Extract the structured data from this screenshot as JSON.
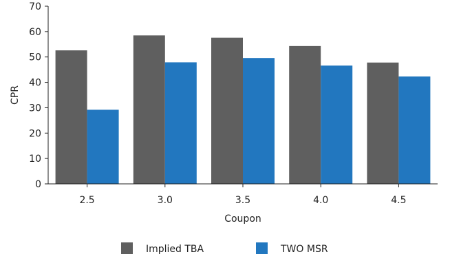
{
  "chart_data": {
    "type": "bar",
    "categories": [
      "2.5",
      "3.0",
      "3.5",
      "4.0",
      "4.5"
    ],
    "series": [
      {
        "name": "Implied TBA",
        "color": "#5f5f5f",
        "values": [
          52.6,
          58.5,
          57.6,
          54.3,
          47.8
        ]
      },
      {
        "name": "TWO MSR",
        "color": "#2277bf",
        "values": [
          29.2,
          47.9,
          49.6,
          46.6,
          42.3
        ]
      }
    ],
    "xlabel": "Coupon",
    "ylabel": "CPR",
    "ylim": [
      0,
      70
    ],
    "yticks": [
      "0",
      "10",
      "20",
      "30",
      "40",
      "50",
      "60",
      "70"
    ],
    "grid": false,
    "legend_position": "bottom"
  }
}
